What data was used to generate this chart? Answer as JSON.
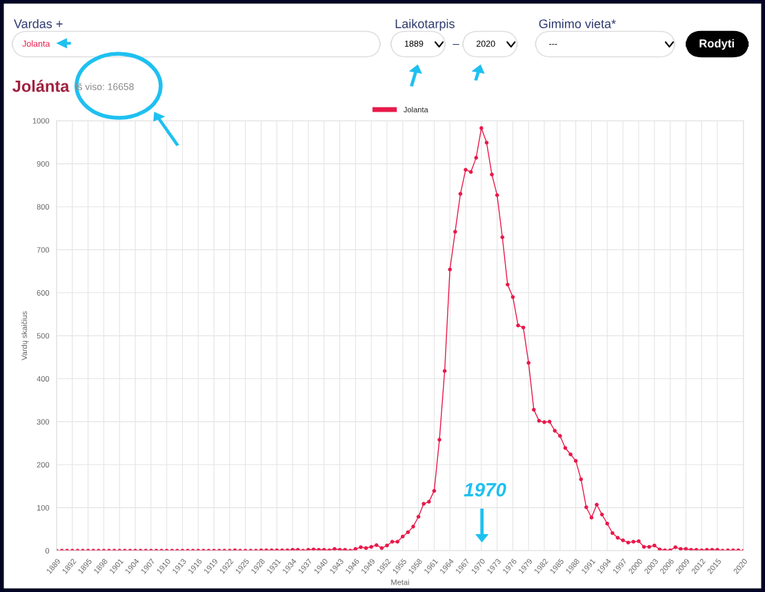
{
  "chart_data": {
    "type": "line",
    "title": "Jolánta",
    "subtitle": "Iš viso: 16658",
    "xlabel": "Metai",
    "ylabel": "Vardų skaičius",
    "annotations": [
      "Vardas +",
      "Jolanta",
      "Laikotarpis",
      "1889",
      "–",
      "2020",
      "Gimimo vieta*",
      "---",
      "Rodyti",
      "1970"
    ],
    "series": [
      {
        "name": "Jolanta",
        "color": "#e8194a",
        "x": [
          1889,
          1890,
          1891,
          1892,
          1893,
          1894,
          1895,
          1896,
          1897,
          1898,
          1899,
          1900,
          1901,
          1902,
          1903,
          1904,
          1905,
          1906,
          1907,
          1908,
          1909,
          1910,
          1911,
          1912,
          1913,
          1914,
          1915,
          1916,
          1917,
          1918,
          1919,
          1920,
          1921,
          1922,
          1923,
          1924,
          1925,
          1926,
          1927,
          1928,
          1929,
          1930,
          1931,
          1932,
          1933,
          1934,
          1935,
          1936,
          1937,
          1938,
          1939,
          1940,
          1941,
          1942,
          1943,
          1944,
          1945,
          1946,
          1947,
          1948,
          1949,
          1950,
          1951,
          1952,
          1953,
          1954,
          1955,
          1956,
          1957,
          1958,
          1959,
          1960,
          1961,
          1962,
          1963,
          1964,
          1965,
          1966,
          1967,
          1968,
          1969,
          1970,
          1971,
          1972,
          1973,
          1974,
          1975,
          1976,
          1977,
          1978,
          1979,
          1980,
          1981,
          1982,
          1983,
          1984,
          1985,
          1986,
          1987,
          1988,
          1989,
          1990,
          1991,
          1992,
          1993,
          1994,
          1995,
          1996,
          1997,
          1998,
          1999,
          2000,
          2001,
          2002,
          2003,
          2004,
          2005,
          2006,
          2007,
          2008,
          2009,
          2010,
          2011,
          2012,
          2013,
          2014,
          2015,
          2016,
          2017,
          2018,
          2019,
          2020
        ],
        "values": [
          0,
          0,
          0,
          0,
          0,
          0,
          0,
          0,
          0,
          0,
          0,
          0,
          0,
          0,
          0,
          0,
          0,
          0,
          0,
          0,
          0,
          0,
          0,
          0,
          0,
          0,
          0,
          0,
          0,
          0,
          0,
          0,
          0,
          0,
          1,
          0,
          0,
          0,
          0,
          1,
          1,
          1,
          1,
          1,
          1,
          2,
          2,
          0,
          2,
          3,
          2,
          2,
          1,
          4,
          2,
          2,
          0,
          4,
          8,
          6,
          9,
          13,
          6,
          12,
          21,
          21,
          33,
          43,
          56,
          79,
          109,
          114,
          139,
          258,
          418,
          654,
          742,
          830,
          886,
          881,
          914,
          983,
          949,
          875,
          827,
          729,
          619,
          590,
          524,
          519,
          437,
          328,
          302,
          299,
          300,
          279,
          267,
          239,
          224,
          209,
          166,
          101,
          77,
          107,
          84,
          63,
          41,
          30,
          24,
          19,
          21,
          22,
          9,
          9,
          12,
          3,
          1,
          1,
          8,
          4,
          4,
          2,
          2,
          1,
          2,
          2,
          2,
          0,
          1,
          1,
          1,
          0
        ]
      }
    ],
    "xlim": [
      1889,
      2020
    ],
    "xticks": [
      1889,
      1892,
      1895,
      1898,
      1901,
      1904,
      1907,
      1910,
      1913,
      1916,
      1919,
      1922,
      1925,
      1928,
      1931,
      1934,
      1937,
      1940,
      1943,
      1946,
      1949,
      1952,
      1955,
      1958,
      1961,
      1964,
      1967,
      1970,
      1973,
      1976,
      1979,
      1982,
      1985,
      1988,
      1991,
      1994,
      1997,
      2000,
      2003,
      2006,
      2009,
      2012,
      2015,
      2020
    ],
    "ylim": [
      0,
      1000
    ],
    "yticks": [
      0,
      100,
      200,
      300,
      400,
      500,
      600,
      700,
      800,
      900,
      1000
    ],
    "grid": true,
    "legend": "top",
    "marker": "circle",
    "line_style": "solid"
  }
}
